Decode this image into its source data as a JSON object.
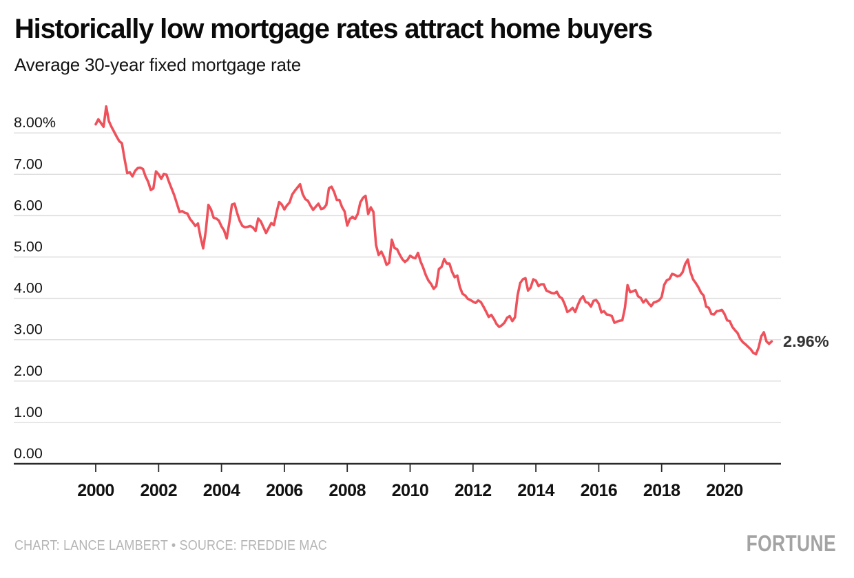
{
  "header": {
    "title": "Historically low mortgage rates attract home buyers",
    "subtitle": "Average 30-year fixed mortgage rate"
  },
  "footer": {
    "attribution": "CHART: LANCE LAMBERT • SOURCE: FREDDIE MAC",
    "brand": "FORTUNE"
  },
  "chart_data": {
    "type": "line",
    "title": "Historically low mortgage rates attract home buyers",
    "subtitle": "Average 30-year fixed mortgage rate",
    "grid": true,
    "legend_position": "none",
    "ylim": [
      0,
      8.8
    ],
    "xlim": [
      2000,
      2021.6
    ],
    "yticks": [
      {
        "value": 8,
        "label": "8.00%"
      },
      {
        "value": 7,
        "label": "7.00"
      },
      {
        "value": 6,
        "label": "6.00"
      },
      {
        "value": 5,
        "label": "5.00"
      },
      {
        "value": 4,
        "label": "4.00"
      },
      {
        "value": 3,
        "label": "3.00"
      },
      {
        "value": 2,
        "label": "2.00"
      },
      {
        "value": 1,
        "label": "1.00"
      },
      {
        "value": 0,
        "label": "0.00"
      }
    ],
    "xticks": [
      2000,
      2002,
      2004,
      2006,
      2008,
      2010,
      2012,
      2014,
      2016,
      2018,
      2020
    ],
    "end_label": "2.96%",
    "last_value": 2.96,
    "line_color": "#EF515B",
    "grid_color": "#DCDCDC",
    "axis_color": "#2A2A2A",
    "label_color": "#141414",
    "end_label_color": "#333333",
    "series": [
      {
        "name": "Average 30-year fixed mortgage rate",
        "start_year": 2000,
        "points_per_year": 12,
        "values": [
          8.21,
          8.33,
          8.24,
          8.15,
          8.64,
          8.29,
          8.15,
          8.03,
          7.91,
          7.8,
          7.75,
          7.38,
          7.03,
          7.05,
          6.95,
          7.08,
          7.15,
          7.16,
          7.13,
          6.95,
          6.82,
          6.62,
          6.66,
          7.07,
          7.0,
          6.89,
          7.01,
          6.99,
          6.81,
          6.65,
          6.49,
          6.29,
          6.09,
          6.11,
          6.07,
          6.05,
          5.92,
          5.84,
          5.75,
          5.81,
          5.48,
          5.21,
          5.63,
          6.26,
          6.15,
          5.95,
          5.93,
          5.88,
          5.74,
          5.64,
          5.45,
          5.83,
          6.27,
          6.29,
          6.06,
          5.87,
          5.75,
          5.72,
          5.73,
          5.75,
          5.71,
          5.63,
          5.93,
          5.86,
          5.72,
          5.58,
          5.7,
          5.82,
          5.77,
          6.07,
          6.33,
          6.27,
          6.15,
          6.25,
          6.32,
          6.51,
          6.6,
          6.68,
          6.76,
          6.52,
          6.4,
          6.36,
          6.24,
          6.14,
          6.22,
          6.29,
          6.16,
          6.18,
          6.26,
          6.66,
          6.7,
          6.57,
          6.38,
          6.38,
          6.21,
          6.1,
          5.76,
          5.92,
          5.97,
          5.92,
          6.04,
          6.32,
          6.43,
          6.48,
          6.04,
          6.2,
          6.09,
          5.29,
          5.05,
          5.13,
          5.0,
          4.81,
          4.86,
          5.42,
          5.22,
          5.19,
          5.06,
          4.95,
          4.88,
          4.93,
          5.03,
          4.99,
          4.97,
          5.1,
          4.89,
          4.74,
          4.56,
          4.43,
          4.35,
          4.23,
          4.3,
          4.71,
          4.76,
          4.95,
          4.84,
          4.84,
          4.64,
          4.51,
          4.55,
          4.27,
          4.11,
          4.07,
          3.99,
          3.96,
          3.92,
          3.89,
          3.95,
          3.91,
          3.8,
          3.68,
          3.55,
          3.6,
          3.5,
          3.38,
          3.31,
          3.35,
          3.41,
          3.53,
          3.57,
          3.45,
          3.54,
          4.07,
          4.37,
          4.46,
          4.49,
          4.19,
          4.26,
          4.46,
          4.43,
          4.3,
          4.34,
          4.34,
          4.19,
          4.16,
          4.13,
          4.12,
          4.16,
          4.04,
          4.0,
          3.86,
          3.67,
          3.71,
          3.77,
          3.67,
          3.84,
          3.98,
          4.05,
          3.91,
          3.89,
          3.8,
          3.94,
          3.96,
          3.87,
          3.66,
          3.69,
          3.61,
          3.6,
          3.57,
          3.41,
          3.44,
          3.46,
          3.47,
          3.77,
          4.32,
          4.15,
          4.17,
          4.2,
          4.05,
          4.01,
          3.9,
          3.97,
          3.88,
          3.81,
          3.9,
          3.92,
          3.95,
          4.03,
          4.33,
          4.44,
          4.47,
          4.59,
          4.57,
          4.53,
          4.55,
          4.63,
          4.83,
          4.94,
          4.64,
          4.46,
          4.37,
          4.27,
          4.14,
          4.07,
          3.8,
          3.77,
          3.62,
          3.61,
          3.69,
          3.7,
          3.72,
          3.62,
          3.47,
          3.45,
          3.31,
          3.23,
          3.16,
          3.02,
          2.94,
          2.89,
          2.83,
          2.77,
          2.68,
          2.65,
          2.81,
          3.08,
          3.18,
          2.96,
          2.9,
          2.96
        ]
      }
    ]
  }
}
